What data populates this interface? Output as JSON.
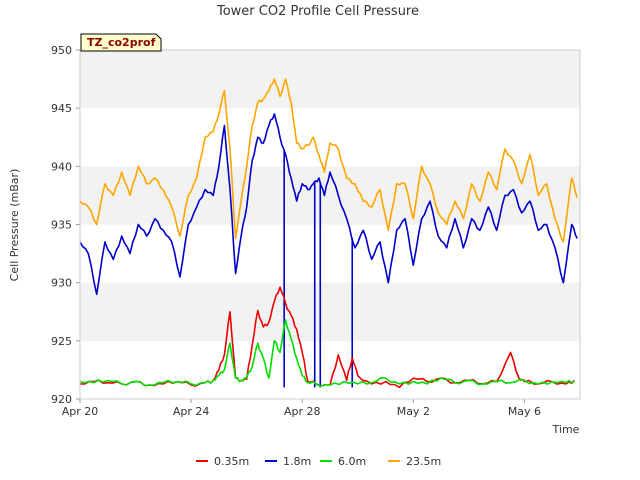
{
  "chart_data": {
    "type": "line",
    "title": "Tower CO2 Profile Cell Pressure",
    "xlabel": "Time",
    "ylabel": "Cell Pressure (mBar)",
    "badge": "TZ_co2prof",
    "x_ticks": [
      "Apr 20",
      "Apr 24",
      "Apr 28",
      "May 2",
      "May 6"
    ],
    "y_ticks": [
      920,
      925,
      930,
      935,
      940,
      945,
      950
    ],
    "ylim": [
      920,
      950
    ],
    "x_range_days": [
      0,
      18
    ],
    "grid": "horizontal bands",
    "legend_position": "bottom",
    "series": [
      {
        "name": "0.35m",
        "color": "#ee0000",
        "x": [
          0,
          0.5,
          1,
          1.5,
          2,
          2.5,
          3,
          3.5,
          4,
          4.5,
          4.8,
          5,
          5.2,
          5.4,
          5.6,
          5.8,
          6,
          6.2,
          6.4,
          6.6,
          6.8,
          7,
          7.2,
          7.4,
          7.6,
          7.8,
          8,
          8.2,
          8.5,
          9,
          9.3,
          9.6,
          9.8,
          10,
          10.5,
          11,
          11.5,
          12,
          12.5,
          13,
          13.5,
          14,
          14.5,
          15,
          15.5,
          15.8,
          16,
          16.5,
          17,
          17.5,
          17.8
        ],
        "y": [
          921.3,
          921.5,
          921.4,
          921.3,
          921.5,
          921.2,
          921.3,
          921.5,
          921.2,
          921.4,
          921.6,
          922.5,
          923.8,
          927.5,
          921.8,
          921.6,
          921.7,
          924.6,
          927.6,
          926.2,
          926.6,
          928.4,
          929.6,
          928.2,
          927.2,
          926.0,
          924.0,
          921.5,
          921.3,
          921.2,
          923.8,
          921.6,
          923.5,
          922.0,
          921.3,
          921.5,
          921.0,
          921.8,
          921.5,
          921.8,
          921.4,
          921.6,
          921.3,
          921.5,
          924.0,
          921.8,
          921.5,
          921.3,
          921.5,
          921.3,
          921.6
        ]
      },
      {
        "name": "1.8m",
        "color": "#0000cc",
        "x": [
          0,
          0.3,
          0.6,
          0.9,
          1.2,
          1.5,
          1.8,
          2.1,
          2.4,
          2.7,
          3,
          3.3,
          3.6,
          3.9,
          4.2,
          4.5,
          4.8,
          5.0,
          5.2,
          5.4,
          5.6,
          5.8,
          6.0,
          6.2,
          6.4,
          6.6,
          6.8,
          7.0,
          7.2,
          7.4,
          7.6,
          7.8,
          8.0,
          8.2,
          8.4,
          8.6,
          8.8,
          9.0,
          9.3,
          9.6,
          9.9,
          10.2,
          10.5,
          10.8,
          11.1,
          11.4,
          11.7,
          12.0,
          12.3,
          12.6,
          12.9,
          13.2,
          13.5,
          13.8,
          14.1,
          14.4,
          14.7,
          15.0,
          15.3,
          15.6,
          15.9,
          16.2,
          16.5,
          16.8,
          17.1,
          17.4,
          17.7,
          17.9
        ],
        "y": [
          933.5,
          932.5,
          929.0,
          933.5,
          932.0,
          934.0,
          932.5,
          935.0,
          934.0,
          935.5,
          934.5,
          933.5,
          930.5,
          935.0,
          936.5,
          938.0,
          937.5,
          940.0,
          943.5,
          938.0,
          930.8,
          934.0,
          936.5,
          940.5,
          942.5,
          942.0,
          943.5,
          944.5,
          942.5,
          941.0,
          939.0,
          937.0,
          938.5,
          938.0,
          938.5,
          939.0,
          937.5,
          939.5,
          937.5,
          935.5,
          933.0,
          934.5,
          932.0,
          933.5,
          930.0,
          934.5,
          935.5,
          931.5,
          935.5,
          937.0,
          934.0,
          933.0,
          935.5,
          933.0,
          935.5,
          934.5,
          936.5,
          934.5,
          937.5,
          938.0,
          936.0,
          937.0,
          934.5,
          935.0,
          933.0,
          930.0,
          935.0,
          933.8
        ]
      },
      {
        "name": "6.0m",
        "color": "#00dd00",
        "x": [
          0,
          0.5,
          1,
          1.5,
          2,
          2.5,
          3,
          3.5,
          4,
          4.5,
          4.8,
          5.0,
          5.2,
          5.4,
          5.6,
          5.8,
          6.0,
          6.2,
          6.4,
          6.6,
          6.8,
          7.0,
          7.2,
          7.4,
          7.6,
          7.8,
          8.0,
          8.2,
          8.5,
          9,
          9.5,
          10,
          10.5,
          11,
          11.5,
          12,
          12.5,
          13,
          13.5,
          14,
          14.5,
          15,
          15.5,
          16,
          16.5,
          17,
          17.5,
          17.8
        ],
        "y": [
          921.5,
          921.4,
          921.6,
          921.3,
          921.5,
          921.2,
          921.4,
          921.5,
          921.3,
          921.4,
          921.6,
          922.0,
          922.5,
          924.8,
          921.8,
          921.6,
          921.8,
          922.8,
          924.8,
          923.5,
          921.8,
          925.0,
          924.0,
          926.8,
          925.2,
          923.5,
          922.0,
          921.4,
          921.3,
          921.2,
          921.5,
          921.3,
          921.4,
          921.8,
          921.3,
          921.5,
          921.3,
          921.8,
          921.4,
          921.6,
          921.3,
          921.5,
          921.4,
          921.6,
          921.3,
          921.5,
          921.4,
          921.5
        ]
      },
      {
        "name": "23.5m",
        "color": "#ffa500",
        "x": [
          0,
          0.3,
          0.6,
          0.9,
          1.2,
          1.5,
          1.8,
          2.1,
          2.4,
          2.7,
          3,
          3.3,
          3.6,
          3.9,
          4.2,
          4.5,
          4.8,
          5.0,
          5.2,
          5.4,
          5.6,
          5.8,
          6.0,
          6.2,
          6.4,
          6.6,
          6.8,
          7.0,
          7.2,
          7.4,
          7.6,
          7.8,
          8.0,
          8.2,
          8.4,
          8.6,
          8.8,
          9.0,
          9.3,
          9.6,
          9.9,
          10.2,
          10.5,
          10.8,
          11.1,
          11.4,
          11.7,
          12.0,
          12.3,
          12.6,
          12.9,
          13.2,
          13.5,
          13.8,
          14.1,
          14.4,
          14.7,
          15.0,
          15.3,
          15.6,
          15.9,
          16.2,
          16.5,
          16.8,
          17.1,
          17.4,
          17.7,
          17.9
        ],
        "y": [
          937.0,
          936.5,
          935.0,
          938.5,
          937.5,
          939.5,
          937.5,
          940.0,
          938.5,
          939.0,
          938.0,
          936.5,
          934.0,
          937.5,
          939.0,
          942.5,
          943.0,
          944.5,
          946.5,
          941.5,
          933.8,
          937.0,
          940.0,
          943.5,
          945.5,
          945.8,
          946.5,
          947.5,
          946.0,
          947.5,
          945.5,
          942.0,
          941.5,
          941.8,
          942.5,
          941.0,
          939.5,
          942.0,
          941.5,
          939.0,
          938.5,
          937.0,
          936.5,
          938.0,
          934.5,
          938.5,
          938.5,
          935.5,
          940.0,
          938.5,
          936.0,
          935.0,
          937.0,
          935.5,
          938.5,
          937.0,
          939.5,
          938.0,
          941.5,
          940.5,
          938.5,
          941.0,
          937.5,
          938.5,
          935.5,
          933.5,
          939.0,
          937.3
        ]
      }
    ],
    "spikes_1_8m": [
      {
        "x": 7.35,
        "y": 921.0
      },
      {
        "x": 8.45,
        "y": 921.0
      },
      {
        "x": 8.65,
        "y": 921.0
      },
      {
        "x": 9.8,
        "y": 921.0
      }
    ]
  }
}
